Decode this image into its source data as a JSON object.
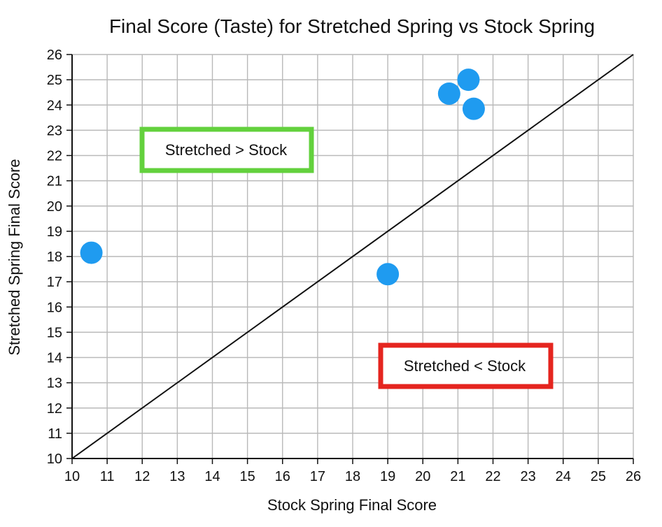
{
  "chart_data": {
    "type": "scatter",
    "title": "Final Score (Taste) for Stretched Spring vs Stock Spring",
    "xlabel": "Stock Spring Final Score",
    "ylabel": "Stretched Spring Final Score",
    "xlim": [
      10,
      26
    ],
    "ylim": [
      10,
      26
    ],
    "xticks": [
      "10",
      "11",
      "12",
      "13",
      "14",
      "15",
      "16",
      "17",
      "18",
      "19",
      "20",
      "21",
      "22",
      "23",
      "24",
      "25",
      "26"
    ],
    "yticks": [
      "10",
      "11",
      "12",
      "13",
      "14",
      "15",
      "16",
      "17",
      "18",
      "19",
      "20",
      "21",
      "22",
      "23",
      "24",
      "25",
      "26"
    ],
    "grid": true,
    "points": [
      {
        "x": 10.55,
        "y": 18.15
      },
      {
        "x": 19.0,
        "y": 17.3
      },
      {
        "x": 20.75,
        "y": 24.45
      },
      {
        "x": 21.3,
        "y": 25.0
      },
      {
        "x": 21.45,
        "y": 23.85
      }
    ],
    "reference_line": {
      "from": [
        10,
        10
      ],
      "to": [
        26,
        26
      ]
    },
    "annotations": [
      {
        "text": "Stretched > Stock",
        "color": "#63d13d"
      },
      {
        "text": "Stretched < Stock",
        "color": "#e5251f"
      }
    ],
    "colors": {
      "point": "#1f9bf0",
      "grid": "#b9b9b9",
      "axis": "#111111"
    }
  }
}
